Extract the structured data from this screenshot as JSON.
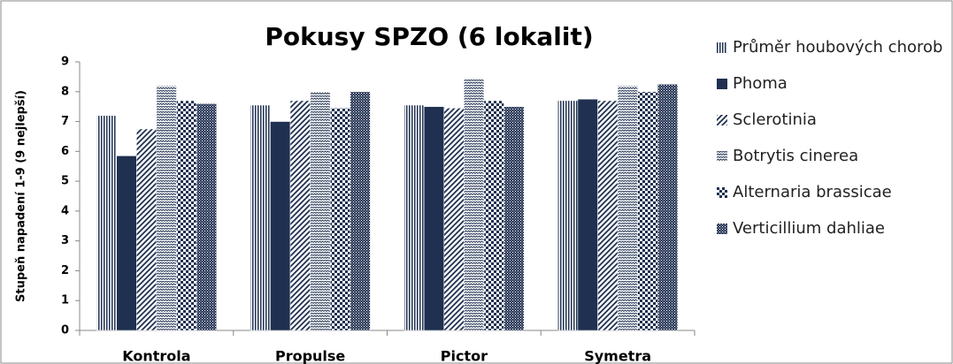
{
  "chart_data": {
    "type": "bar",
    "title": "Pokusy SPZO (6 lokalit)",
    "y_label": "Stupeň napadení 1-9 (9 nejlepší)",
    "categories": [
      "Kontrola",
      "Propulse",
      "Pictor",
      "Symetra"
    ],
    "series": [
      {
        "name": "Průměr houbových chorob",
        "color": "#1f3050",
        "pattern": "vertical",
        "values": [
          7.2,
          7.55,
          7.55,
          7.7
        ]
      },
      {
        "name": "Phoma",
        "color": "#1f3050",
        "pattern": "solid",
        "values": [
          5.85,
          7.0,
          7.5,
          7.75
        ]
      },
      {
        "name": "Sclerotinia",
        "color": "#1f3050",
        "pattern": "diagonal",
        "values": [
          6.75,
          7.7,
          7.45,
          7.7
        ]
      },
      {
        "name": "Botrytis cinerea",
        "color": "#1f3050",
        "pattern": "wave",
        "values": [
          8.2,
          8.0,
          8.45,
          8.2
        ]
      },
      {
        "name": "Alternaria brassicae",
        "color": "#1f3050",
        "pattern": "checker",
        "values": [
          7.7,
          7.45,
          7.7,
          8.0
        ]
      },
      {
        "name": "Verticillium dahliae",
        "color": "#1f3050",
        "pattern": "dense",
        "values": [
          7.6,
          8.0,
          7.5,
          8.25
        ]
      }
    ],
    "ylim": [
      0,
      9
    ],
    "yticks": [
      0,
      1,
      2,
      3,
      4,
      5,
      6,
      7,
      8,
      9
    ],
    "grid": false,
    "legend": "right"
  }
}
